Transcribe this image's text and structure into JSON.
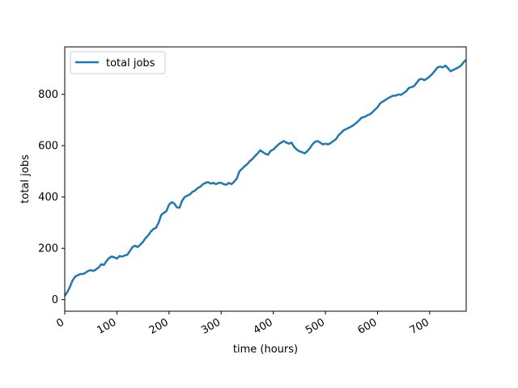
{
  "chart_data": {
    "type": "line",
    "xlabel": "time (hours)",
    "ylabel": "total jobs",
    "xlim": [
      0,
      770
    ],
    "ylim": [
      -45,
      985
    ],
    "x_ticks": [
      0,
      100,
      200,
      300,
      400,
      500,
      600,
      700
    ],
    "x_tick_labels": [
      "0",
      "100",
      "200",
      "300",
      "400",
      "500",
      "600",
      "700"
    ],
    "y_ticks": [
      0,
      200,
      400,
      600,
      800
    ],
    "y_tick_labels": [
      "0",
      "200",
      "400",
      "600",
      "800"
    ],
    "grid": false,
    "legend": {
      "placement": "top-left",
      "entries": [
        "total jobs"
      ]
    },
    "series": [
      {
        "name": "total jobs",
        "color": "#1f77b4",
        "points": [
          [
            0,
            15
          ],
          [
            5,
            30
          ],
          [
            10,
            50
          ],
          [
            15,
            75
          ],
          [
            20,
            90
          ],
          [
            25,
            95
          ],
          [
            30,
            100
          ],
          [
            35,
            100
          ],
          [
            40,
            105
          ],
          [
            45,
            112
          ],
          [
            50,
            115
          ],
          [
            55,
            112
          ],
          [
            60,
            118
          ],
          [
            65,
            125
          ],
          [
            70,
            138
          ],
          [
            75,
            135
          ],
          [
            80,
            150
          ],
          [
            85,
            162
          ],
          [
            90,
            168
          ],
          [
            95,
            165
          ],
          [
            100,
            160
          ],
          [
            105,
            170
          ],
          [
            110,
            168
          ],
          [
            115,
            172
          ],
          [
            120,
            175
          ],
          [
            125,
            190
          ],
          [
            130,
            205
          ],
          [
            135,
            210
          ],
          [
            140,
            205
          ],
          [
            145,
            215
          ],
          [
            150,
            225
          ],
          [
            155,
            240
          ],
          [
            160,
            250
          ],
          [
            165,
            265
          ],
          [
            170,
            275
          ],
          [
            175,
            280
          ],
          [
            180,
            300
          ],
          [
            185,
            330
          ],
          [
            190,
            338
          ],
          [
            195,
            345
          ],
          [
            200,
            370
          ],
          [
            205,
            380
          ],
          [
            210,
            375
          ],
          [
            215,
            360
          ],
          [
            220,
            358
          ],
          [
            225,
            385
          ],
          [
            230,
            400
          ],
          [
            235,
            405
          ],
          [
            240,
            410
          ],
          [
            245,
            420
          ],
          [
            250,
            425
          ],
          [
            255,
            435
          ],
          [
            260,
            440
          ],
          [
            265,
            450
          ],
          [
            270,
            455
          ],
          [
            275,
            458
          ],
          [
            280,
            452
          ],
          [
            285,
            455
          ],
          [
            290,
            450
          ],
          [
            295,
            455
          ],
          [
            300,
            455
          ],
          [
            305,
            450
          ],
          [
            310,
            448
          ],
          [
            315,
            455
          ],
          [
            320,
            450
          ],
          [
            325,
            460
          ],
          [
            330,
            472
          ],
          [
            335,
            500
          ],
          [
            340,
            510
          ],
          [
            345,
            520
          ],
          [
            350,
            528
          ],
          [
            355,
            540
          ],
          [
            360,
            548
          ],
          [
            365,
            560
          ],
          [
            370,
            570
          ],
          [
            375,
            582
          ],
          [
            380,
            575
          ],
          [
            385,
            568
          ],
          [
            390,
            565
          ],
          [
            395,
            580
          ],
          [
            400,
            585
          ],
          [
            405,
            595
          ],
          [
            410,
            605
          ],
          [
            415,
            612
          ],
          [
            420,
            618
          ],
          [
            425,
            612
          ],
          [
            430,
            608
          ],
          [
            435,
            612
          ],
          [
            440,
            595
          ],
          [
            445,
            585
          ],
          [
            450,
            578
          ],
          [
            455,
            575
          ],
          [
            460,
            570
          ],
          [
            465,
            578
          ],
          [
            470,
            590
          ],
          [
            475,
            605
          ],
          [
            480,
            615
          ],
          [
            485,
            618
          ],
          [
            490,
            612
          ],
          [
            495,
            605
          ],
          [
            500,
            608
          ],
          [
            505,
            605
          ],
          [
            510,
            610
          ],
          [
            515,
            618
          ],
          [
            520,
            625
          ],
          [
            525,
            640
          ],
          [
            530,
            650
          ],
          [
            535,
            660
          ],
          [
            540,
            665
          ],
          [
            545,
            670
          ],
          [
            550,
            675
          ],
          [
            555,
            682
          ],
          [
            560,
            690
          ],
          [
            565,
            700
          ],
          [
            570,
            710
          ],
          [
            575,
            712
          ],
          [
            580,
            718
          ],
          [
            585,
            722
          ],
          [
            590,
            730
          ],
          [
            595,
            740
          ],
          [
            600,
            750
          ],
          [
            605,
            765
          ],
          [
            610,
            772
          ],
          [
            615,
            778
          ],
          [
            620,
            785
          ],
          [
            625,
            790
          ],
          [
            630,
            795
          ],
          [
            635,
            795
          ],
          [
            640,
            800
          ],
          [
            645,
            798
          ],
          [
            650,
            805
          ],
          [
            655,
            812
          ],
          [
            660,
            825
          ],
          [
            665,
            828
          ],
          [
            670,
            832
          ],
          [
            675,
            845
          ],
          [
            680,
            858
          ],
          [
            685,
            860
          ],
          [
            690,
            855
          ],
          [
            695,
            862
          ],
          [
            700,
            870
          ],
          [
            705,
            880
          ],
          [
            710,
            892
          ],
          [
            715,
            905
          ],
          [
            720,
            908
          ],
          [
            725,
            905
          ],
          [
            730,
            912
          ],
          [
            735,
            902
          ],
          [
            740,
            890
          ],
          [
            745,
            895
          ],
          [
            750,
            900
          ],
          [
            755,
            905
          ],
          [
            760,
            912
          ],
          [
            765,
            925
          ],
          [
            770,
            935
          ]
        ]
      }
    ]
  }
}
